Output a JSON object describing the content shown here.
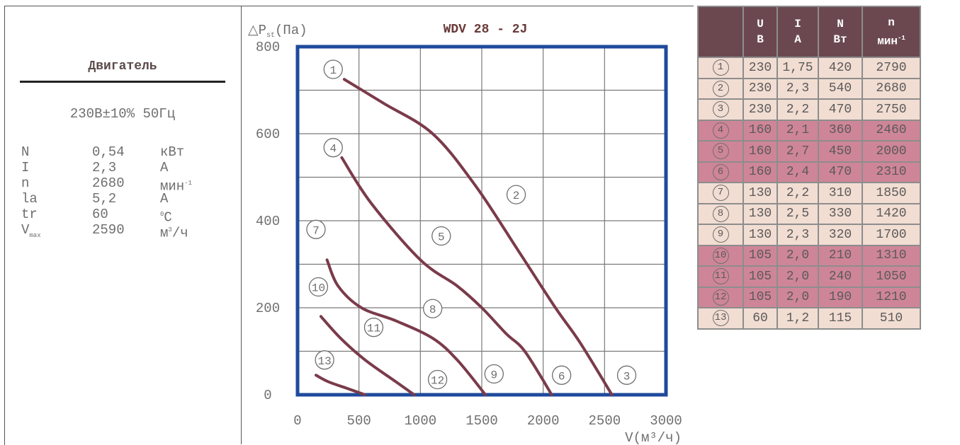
{
  "motor": {
    "title": "Двигатель",
    "supply": "230В±10% 50Гц",
    "specs": [
      {
        "name": "N",
        "value": "0,54",
        "unit": "кВт"
      },
      {
        "name": "I",
        "value": "2,3",
        "unit": "А"
      },
      {
        "name": "n",
        "value": "2680",
        "unit": "мин",
        "unit_sup": "-1"
      },
      {
        "name": "la",
        "value": "5,2",
        "unit": "А"
      },
      {
        "name": "tr",
        "value": "60",
        "unit_pre_sup": "0",
        "unit": "С"
      },
      {
        "name": "V",
        "name_sub": "max",
        "value": "2590",
        "unit": "м",
        "unit_sup": "3",
        "unit_post": "/ч"
      }
    ]
  },
  "chart_data": {
    "type": "line",
    "title": "WDV 28 - 2J",
    "ylabel": "△P",
    "ylabel_sub": "st",
    "ylabel_unit": "(Па)",
    "xlabel": "V(м³/ч)",
    "xlim": [
      0,
      3000
    ],
    "ylim": [
      0,
      800
    ],
    "x_ticks": [
      "0",
      "500",
      "1000",
      "1500",
      "2000",
      "2500",
      "3000"
    ],
    "y_ticks": [
      "0",
      "200",
      "400",
      "600",
      "800"
    ],
    "grid": true,
    "series": [
      {
        "name": "1-2-3",
        "curve_labels": [
          "1",
          "2",
          "3"
        ],
        "x": [
          380,
          700,
          1100,
          1450,
          1800,
          2100,
          2300,
          2560
        ],
        "y": [
          725,
          670,
          600,
          480,
          330,
          200,
          120,
          0
        ]
      },
      {
        "name": "4-5-6",
        "curve_labels": [
          "4",
          "5",
          "6"
        ],
        "x": [
          360,
          600,
          1000,
          1300,
          1500,
          1700,
          1850,
          2070
        ],
        "y": [
          545,
          440,
          310,
          250,
          200,
          140,
          100,
          0
        ]
      },
      {
        "name": "7-8-9",
        "curve_labels": [
          "7",
          "8",
          "9"
        ],
        "x": [
          240,
          330,
          520,
          800,
          1100,
          1300,
          1530
        ],
        "y": [
          310,
          250,
          200,
          170,
          130,
          80,
          0
        ]
      },
      {
        "name": "10-11-12",
        "curve_labels": [
          "10",
          "11",
          "12"
        ],
        "x": [
          190,
          350,
          550,
          800,
          950
        ],
        "y": [
          180,
          130,
          80,
          30,
          0
        ]
      },
      {
        "name": "13",
        "curve_labels": [
          "13"
        ],
        "x": [
          150,
          250,
          400,
          550
        ],
        "y": [
          45,
          30,
          15,
          0
        ]
      }
    ],
    "label_points": [
      {
        "text": "1",
        "x": 290,
        "y": 748
      },
      {
        "text": "2",
        "x": 1780,
        "y": 460
      },
      {
        "text": "3",
        "x": 2680,
        "y": 45
      },
      {
        "text": "4",
        "x": 290,
        "y": 568
      },
      {
        "text": "5",
        "x": 1170,
        "y": 365
      },
      {
        "text": "6",
        "x": 2150,
        "y": 45
      },
      {
        "text": "7",
        "x": 150,
        "y": 380
      },
      {
        "text": "8",
        "x": 1100,
        "y": 198
      },
      {
        "text": "9",
        "x": 1600,
        "y": 48
      },
      {
        "text": "10",
        "x": 170,
        "y": 248
      },
      {
        "text": "11",
        "x": 620,
        "y": 155
      },
      {
        "text": "12",
        "x": 1140,
        "y": 35
      },
      {
        "text": "13",
        "x": 220,
        "y": 80
      }
    ]
  },
  "table": {
    "headers": [
      {
        "top": "U",
        "bottom": "В"
      },
      {
        "top": "I",
        "bottom": "А"
      },
      {
        "top": "N",
        "bottom": "Вт"
      },
      {
        "top": "n",
        "bottom": "мин",
        "bottom_sup": "-1"
      }
    ],
    "rows": [
      {
        "id": "1",
        "group": "light",
        "U": "230",
        "I": "1,75",
        "N": "420",
        "n": "2790"
      },
      {
        "id": "2",
        "group": "light",
        "U": "230",
        "I": "2,3",
        "N": "540",
        "n": "2680"
      },
      {
        "id": "3",
        "group": "light",
        "U": "230",
        "I": "2,2",
        "N": "470",
        "n": "2750"
      },
      {
        "id": "4",
        "group": "dark",
        "U": "160",
        "I": "2,1",
        "N": "360",
        "n": "2460"
      },
      {
        "id": "5",
        "group": "dark",
        "U": "160",
        "I": "2,7",
        "N": "450",
        "n": "2000"
      },
      {
        "id": "6",
        "group": "dark",
        "U": "160",
        "I": "2,4",
        "N": "470",
        "n": "2310"
      },
      {
        "id": "7",
        "group": "light",
        "U": "130",
        "I": "2,2",
        "N": "310",
        "n": "1850"
      },
      {
        "id": "8",
        "group": "light",
        "U": "130",
        "I": "2,5",
        "N": "330",
        "n": "1420"
      },
      {
        "id": "9",
        "group": "light",
        "U": "130",
        "I": "2,3",
        "N": "320",
        "n": "1700"
      },
      {
        "id": "10",
        "group": "dark",
        "U": "105",
        "I": "2,0",
        "N": "210",
        "n": "1310"
      },
      {
        "id": "11",
        "group": "dark",
        "U": "105",
        "I": "2,0",
        "N": "240",
        "n": "1050"
      },
      {
        "id": "12",
        "group": "dark",
        "U": "105",
        "I": "2,0",
        "N": "190",
        "n": "1210"
      },
      {
        "id": "13",
        "group": "light",
        "U": "60",
        "I": "1,2",
        "N": "115",
        "n": "510"
      }
    ]
  },
  "colors": {
    "curve": "#7a3b4a",
    "frame": "#1f4a9c",
    "table_header": "#6b4850",
    "row_light": "#f2ddd2",
    "row_dark": "#cf8598"
  }
}
